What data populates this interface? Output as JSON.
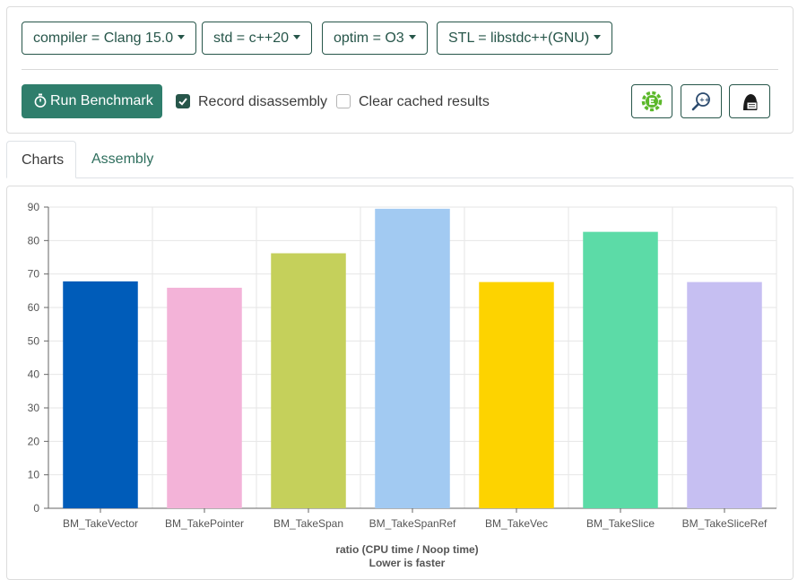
{
  "toolbar": {
    "compiler_label": "compiler = Clang 15.0",
    "std_label": "std = c++20",
    "optim_label": "optim = O3",
    "stl_label": "STL = libstdc++(GNU)",
    "run_label": "Run Benchmark",
    "record_label": "Record disassembly",
    "record_checked": true,
    "clear_label": "Clear cached results",
    "clear_checked": false
  },
  "tabs": [
    {
      "label": "Charts",
      "active": true
    },
    {
      "label": "Assembly",
      "active": false
    }
  ],
  "colors": {
    "accent": "#2f7e6c",
    "accent_dark": "#27564a"
  },
  "chart_data": {
    "type": "bar",
    "categories": [
      "BM_TakeVector",
      "BM_TakePointer",
      "BM_TakeSpan",
      "BM_TakeSpanRef",
      "BM_TakeVec",
      "BM_TakeSlice",
      "BM_TakeSliceRef"
    ],
    "values": [
      67.8,
      65.9,
      76.2,
      89.5,
      67.6,
      82.6,
      67.6
    ],
    "colors": [
      "#005cb9",
      "#f3b3d8",
      "#c5d05b",
      "#a2caf2",
      "#fdd300",
      "#5cdba7",
      "#c6bff2"
    ],
    "xlabel": "ratio (CPU time / Noop time)",
    "xlabel_sub": "Lower is faster",
    "ylim": [
      0,
      90
    ],
    "yticks": [
      0,
      10,
      20,
      30,
      40,
      50,
      60,
      70,
      80,
      90
    ],
    "grid": true
  }
}
